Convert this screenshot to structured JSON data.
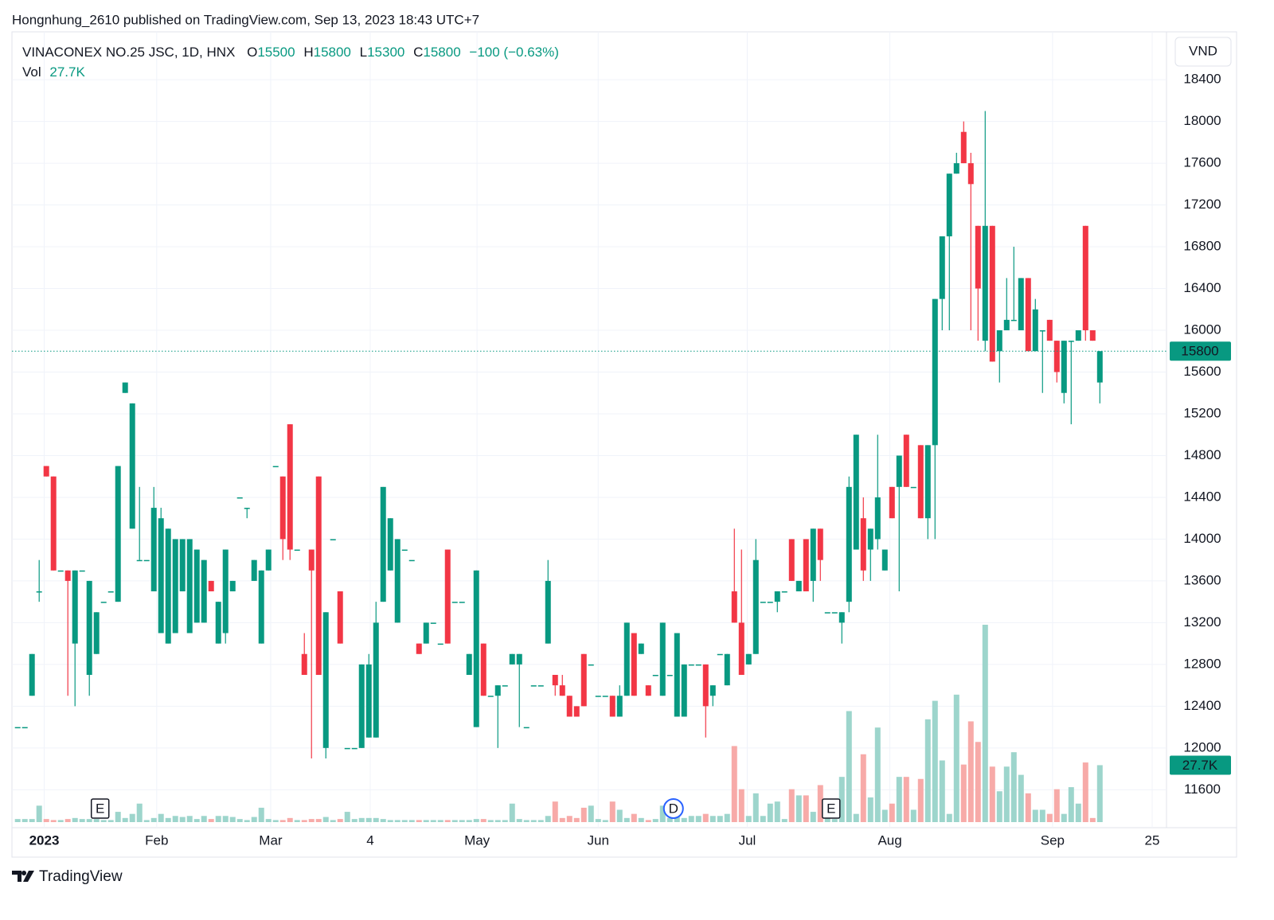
{
  "chart_data": {
    "type": "candlestick",
    "published": "Hongnhung_2610 published on TradingView.com, Sep 13, 2023 18:43 UTC+7",
    "symbol": "VINACONEX NO.25 JSC, 1D, HNX",
    "header": {
      "o_label": "O",
      "o": 15500,
      "h_label": "H",
      "h": 15800,
      "l_label": "L",
      "l": 15300,
      "c_label": "C",
      "c": 15800,
      "change": "−100 (−0.63%)"
    },
    "volume_name": "Vol",
    "volume_label": "27.7K",
    "currency": "VND",
    "brand": "TradingView",
    "events": [
      "E",
      "D",
      "E"
    ],
    "up_color": "#089981",
    "down_color": "#f23645",
    "up_volume_color": "#9dd5cc",
    "down_volume_color": "#f7aaa8",
    "ylim": [
      11290,
      18820
    ],
    "yticks": [
      11600,
      12000,
      12400,
      12800,
      13200,
      13600,
      14000,
      14400,
      14800,
      15200,
      15600,
      16000,
      16400,
      16800,
      17200,
      17600,
      18000,
      18400
    ],
    "xlim": [
      -0.8,
      160.3
    ],
    "xticks": [
      {
        "value": 3.7,
        "label": "2023"
      },
      {
        "value": 19.4,
        "label": "Feb"
      },
      {
        "value": 35.3,
        "label": "Mar"
      },
      {
        "value": 49.2,
        "label": "4"
      },
      {
        "value": 64.1,
        "label": "May"
      },
      {
        "value": 81,
        "label": "Jun"
      },
      {
        "value": 101.8,
        "label": "Jul"
      },
      {
        "value": 121.7,
        "label": "Aug"
      },
      {
        "value": 144.4,
        "label": "Sep"
      },
      {
        "value": 158.3,
        "label": "25"
      }
    ],
    "grid": true,
    "open": [
      12200,
      12200,
      12500,
      13500,
      14700,
      14600,
      13700,
      13700,
      13000,
      13700,
      12700,
      12900,
      13400,
      13500,
      13400,
      15400,
      14100,
      13800,
      13800,
      13500,
      13100,
      13000,
      13100,
      13500,
      13100,
      13200,
      13200,
      13600,
      13000,
      13100,
      13500,
      14400,
      14300,
      13600,
      13000,
      13700,
      14700,
      14600,
      15100,
      13900,
      12900,
      13900,
      14600,
      12000,
      14000,
      13500,
      12000,
      12000,
      12000,
      12100,
      12100,
      13400,
      13700,
      13200,
      13900,
      13800,
      13000,
      13000,
      13200,
      13000,
      13900,
      13400,
      13400,
      12700,
      12200,
      13000,
      12500,
      12500,
      12600,
      12800,
      12800,
      12200,
      12600,
      12600,
      13000,
      12700,
      12600,
      12500,
      12400,
      12900,
      12800,
      12500,
      12500,
      12500,
      12300,
      12500,
      13100,
      12900,
      12600,
      12700,
      12500,
      12700,
      12300,
      12300,
      12800,
      12800,
      12800,
      12500,
      12900,
      12600,
      13500,
      13200,
      12800,
      12900,
      13400,
      13400,
      13400,
      13500,
      14000,
      13500,
      14000,
      13600,
      14100,
      13300,
      13300,
      13200,
      13400,
      13900,
      14200,
      13900,
      14000,
      13700,
      14500,
      14500,
      15000,
      14500,
      14900,
      14200,
      14900,
      16300,
      16900,
      17500,
      17900,
      17600,
      17000,
      15900,
      17000,
      15800,
      16000,
      16100,
      16000,
      16500,
      15800,
      16000,
      16100,
      15900,
      15400,
      15900,
      15900,
      17000,
      16000,
      15500
    ],
    "high": [
      12200,
      12200,
      12900,
      13800,
      14700,
      14600,
      13700,
      13700,
      13700,
      13700,
      13600,
      13300,
      13400,
      13500,
      14700,
      15500,
      15300,
      14500,
      13800,
      14500,
      14300,
      14100,
      14000,
      14000,
      14000,
      13900,
      13800,
      13600,
      13400,
      13900,
      13600,
      14400,
      14300,
      13800,
      13700,
      13900,
      14700,
      14600,
      15100,
      13900,
      13100,
      13900,
      14600,
      13300,
      14000,
      13500,
      12000,
      12000,
      12800,
      12900,
      13400,
      14500,
      14200,
      14000,
      13900,
      13800,
      13000,
      13200,
      13200,
      13000,
      13900,
      13400,
      13400,
      12900,
      13700,
      13000,
      12500,
      12600,
      12600,
      12900,
      12900,
      12200,
      12600,
      12600,
      13800,
      12700,
      12700,
      12500,
      12400,
      12900,
      12800,
      12500,
      12500,
      12500,
      12600,
      13200,
      13100,
      13000,
      12600,
      12700,
      13200,
      12700,
      13100,
      12800,
      12800,
      12800,
      12800,
      12600,
      12900,
      12900,
      14100,
      13900,
      12900,
      14000,
      13400,
      13400,
      13500,
      13500,
      14000,
      13600,
      14000,
      14100,
      14100,
      13300,
      13300,
      13300,
      14600,
      15000,
      14400,
      14100,
      15000,
      13900,
      14500,
      14800,
      15000,
      14500,
      14900,
      14900,
      16300,
      16900,
      17500,
      17700,
      18000,
      17700,
      17000,
      18100,
      17000,
      16000,
      16500,
      16800,
      16500,
      16500,
      16300,
      16000,
      16100,
      15900,
      15900,
      15900,
      16000,
      17000,
      16000,
      15800
    ],
    "low": [
      12200,
      12200,
      12500,
      13400,
      14600,
      13700,
      13700,
      12500,
      12400,
      13700,
      12500,
      12900,
      13400,
      13500,
      13400,
      15400,
      14100,
      13800,
      13800,
      13500,
      13100,
      13000,
      13100,
      13500,
      13100,
      13200,
      13200,
      13500,
      13000,
      13000,
      13500,
      14400,
      14200,
      13600,
      13000,
      13700,
      14700,
      13800,
      13800,
      13900,
      12700,
      11900,
      12700,
      11900,
      14000,
      13000,
      12000,
      12000,
      12000,
      12100,
      12100,
      13400,
      13700,
      13200,
      13900,
      13800,
      12900,
      13000,
      13200,
      13000,
      13000,
      13400,
      13400,
      12700,
      12200,
      12500,
      12500,
      12000,
      12600,
      12800,
      12200,
      12200,
      12600,
      12600,
      13000,
      12500,
      12500,
      12300,
      12300,
      12400,
      12800,
      12500,
      12500,
      12300,
      12300,
      12500,
      12500,
      12900,
      12500,
      12700,
      12500,
      12700,
      12300,
      12300,
      12800,
      12800,
      12100,
      12400,
      12900,
      12600,
      13200,
      12700,
      12800,
      12900,
      13400,
      13400,
      13300,
      13500,
      13600,
      13500,
      13500,
      13400,
      13600,
      13300,
      13300,
      13000,
      13300,
      13900,
      13600,
      13600,
      13900,
      13700,
      14200,
      13500,
      14500,
      14500,
      14200,
      14000,
      14000,
      16000,
      16000,
      17500,
      17600,
      16000,
      15900,
      15800,
      15700,
      15500,
      16000,
      16100,
      16000,
      15800,
      15800,
      15400,
      15900,
      15500,
      15300,
      15100,
      15900,
      15900,
      15900,
      15300
    ],
    "close": [
      12200,
      12200,
      12900,
      13500,
      14600,
      13700,
      13700,
      13600,
      13700,
      13700,
      13600,
      13300,
      13400,
      13500,
      14700,
      15500,
      15300,
      13800,
      13800,
      14300,
      14200,
      14100,
      14000,
      14000,
      14000,
      13900,
      13800,
      13500,
      13400,
      13900,
      13600,
      14400,
      14300,
      13800,
      13700,
      13900,
      14700,
      14000,
      13900,
      13900,
      12700,
      13700,
      12700,
      13300,
      14000,
      13000,
      12000,
      12000,
      12800,
      12800,
      13200,
      14500,
      14200,
      14000,
      13900,
      13800,
      12900,
      13200,
      13200,
      13000,
      13000,
      13400,
      13400,
      12900,
      13700,
      12500,
      12500,
      12600,
      12600,
      12900,
      12900,
      12200,
      12600,
      12600,
      13600,
      12600,
      12500,
      12300,
      12300,
      12400,
      12800,
      12500,
      12500,
      12300,
      12500,
      13200,
      12500,
      13000,
      12500,
      12700,
      13200,
      12700,
      13100,
      12800,
      12800,
      12800,
      12400,
      12600,
      12900,
      12900,
      13200,
      12700,
      12900,
      13800,
      13400,
      13400,
      13500,
      13500,
      13600,
      13600,
      13500,
      14100,
      13800,
      13300,
      13300,
      13300,
      14500,
      15000,
      13700,
      14100,
      14400,
      13900,
      14200,
      14800,
      14500,
      14500,
      14200,
      14900,
      16300,
      16900,
      17500,
      17600,
      17600,
      17400,
      16400,
      17000,
      15700,
      16000,
      16100,
      16100,
      16500,
      15800,
      16200,
      16000,
      15900,
      15600,
      15900,
      15900,
      16000,
      16000,
      15900,
      15800
    ],
    "volume": [
      1500,
      1500,
      1500,
      8000,
      1500,
      1000,
      1000,
      1500,
      2000,
      1500,
      1500,
      1500,
      1000,
      1000,
      5000,
      2000,
      4000,
      9000,
      1000,
      2000,
      4000,
      2000,
      3000,
      2500,
      3000,
      1500,
      3000,
      1500,
      3000,
      3000,
      2500,
      1500,
      1000,
      2500,
      7000,
      1500,
      1000,
      1000,
      2000,
      1000,
      1000,
      1500,
      1500,
      2500,
      1000,
      1500,
      5000,
      1500,
      2000,
      2000,
      2000,
      1500,
      1000,
      1000,
      1000,
      1000,
      1000,
      1000,
      1000,
      1000,
      1000,
      1000,
      1000,
      1000,
      1500,
      1500,
      1000,
      1000,
      1000,
      9000,
      1500,
      1000,
      1000,
      1000,
      3000,
      10000,
      2000,
      3000,
      2000,
      7000,
      8000,
      1500,
      1000,
      10000,
      6000,
      2000,
      4000,
      2000,
      1000,
      1500,
      8000,
      2000,
      7000,
      2000,
      3000,
      3000,
      4000,
      3000,
      3000,
      4000,
      37000,
      16000,
      3000,
      14000,
      3000,
      9000,
      10000,
      1500,
      16000,
      13000,
      13000,
      5000,
      18000,
      8000,
      1500,
      22000,
      54000,
      4000,
      33000,
      12000,
      46000,
      6000,
      9000,
      22000,
      22000,
      6000,
      21000,
      50000,
      59000,
      30000,
      4000,
      62000,
      28000,
      49000,
      39000,
      96000,
      27000,
      15000,
      27000,
      34000,
      23000,
      14000,
      6000,
      6000,
      4000,
      16000,
      4000,
      17000,
      9000,
      29000,
      2000,
      27700
    ]
  }
}
